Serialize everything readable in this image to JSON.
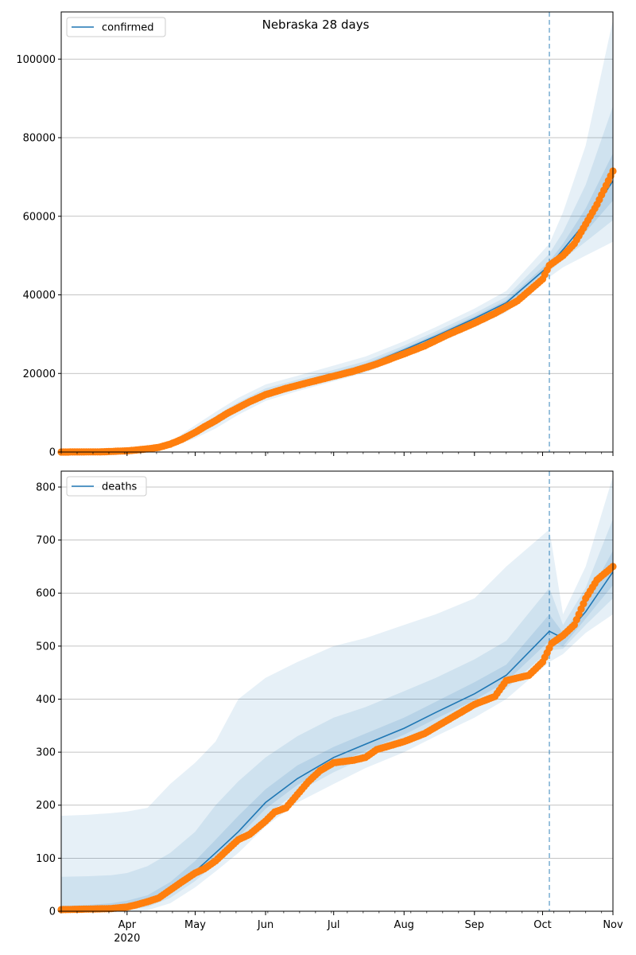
{
  "figure_title": "Nebraska 28 days",
  "month_ticks": [
    "Apr",
    "May",
    "Jun",
    "Jul",
    "Aug",
    "Sep",
    "Oct",
    "Nov"
  ],
  "year_label": "2020",
  "colors": {
    "model": "#1f77b4",
    "observed": "#ff7f0e",
    "band": "#1f77b4",
    "grid": "#b0b0b0",
    "vline": "#1f77b4"
  },
  "chart_data": [
    {
      "type": "line",
      "legend": "confirmed",
      "legend_location": "upper-left",
      "grid": "horizontal",
      "x_range": [
        "2020-03-03",
        "2020-11-01"
      ],
      "forecast_start": "2020-10-04",
      "ylim": [
        0,
        112000
      ],
      "yticks": [
        0,
        20000,
        40000,
        60000,
        80000,
        100000
      ],
      "model_line": {
        "dates": [
          "2020-03-03",
          "2020-03-15",
          "2020-03-25",
          "2020-04-01",
          "2020-04-10",
          "2020-04-20",
          "2020-05-01",
          "2020-05-10",
          "2020-05-20",
          "2020-06-01",
          "2020-06-15",
          "2020-07-01",
          "2020-07-15",
          "2020-08-01",
          "2020-08-15",
          "2020-09-01",
          "2020-09-15",
          "2020-10-04",
          "2020-10-10",
          "2020-10-20",
          "2020-11-01"
        ],
        "values": [
          0,
          0,
          50,
          250,
          700,
          1800,
          5000,
          8000,
          11500,
          15000,
          17300,
          19800,
          22000,
          26000,
          29500,
          34000,
          38000,
          47500,
          51500,
          58500,
          69000
        ]
      },
      "band_outer": {
        "lower": [
          0,
          0,
          20,
          150,
          450,
          1200,
          3500,
          6000,
          9500,
          13000,
          15500,
          18000,
          20200,
          24200,
          27500,
          31800,
          35600,
          44500,
          47000,
          50000,
          53500
        ],
        "upper": [
          300,
          300,
          300,
          400,
          1000,
          2600,
          6800,
          10200,
          13800,
          17200,
          19400,
          22000,
          24300,
          28200,
          31800,
          36500,
          41000,
          53000,
          61000,
          78000,
          110000
        ]
      },
      "band_mid": {
        "lower": [
          0,
          0,
          30,
          190,
          560,
          1450,
          4100,
          6900,
          10400,
          13900,
          16300,
          18800,
          21000,
          25000,
          28400,
          32800,
          36700,
          46000,
          49000,
          53500,
          59000
        ],
        "upper": [
          150,
          150,
          160,
          300,
          850,
          2200,
          6000,
          9200,
          12700,
          16200,
          18400,
          20900,
          23100,
          27100,
          30700,
          35300,
          39500,
          50500,
          56000,
          68000,
          88000
        ]
      },
      "band_inner": {
        "lower": [
          0,
          0,
          40,
          220,
          630,
          1620,
          4550,
          7450,
          10950,
          14450,
          16800,
          19300,
          21500,
          25500,
          28950,
          33400,
          37350,
          46800,
          50200,
          56000,
          64000
        ],
        "upper": [
          80,
          80,
          90,
          280,
          770,
          1980,
          5450,
          8550,
          12050,
          15550,
          17800,
          20300,
          22500,
          26500,
          30050,
          34600,
          38650,
          48500,
          53000,
          62000,
          76000
        ]
      },
      "observed": {
        "dates": [
          "2020-03-03",
          "2020-03-20",
          "2020-03-25",
          "2020-04-01",
          "2020-04-05",
          "2020-04-10",
          "2020-04-15",
          "2020-04-20",
          "2020-04-25",
          "2020-05-01",
          "2020-05-05",
          "2020-05-10",
          "2020-05-15",
          "2020-05-20",
          "2020-05-25",
          "2020-06-01",
          "2020-06-10",
          "2020-06-20",
          "2020-07-01",
          "2020-07-10",
          "2020-07-20",
          "2020-08-01",
          "2020-08-10",
          "2020-08-20",
          "2020-09-01",
          "2020-09-10",
          "2020-09-20",
          "2020-10-01",
          "2020-10-04",
          "2020-10-10",
          "2020-10-15",
          "2020-10-20",
          "2020-10-25",
          "2020-11-01"
        ],
        "values": [
          0,
          50,
          150,
          300,
          500,
          800,
          1200,
          2000,
          3200,
          5000,
          6400,
          8000,
          9800,
          11300,
          12800,
          14600,
          16200,
          17700,
          19300,
          20600,
          22400,
          25000,
          27000,
          29800,
          32800,
          35300,
          38500,
          44000,
          47500,
          50000,
          53000,
          58000,
          63000,
          71500
        ]
      }
    },
    {
      "type": "line",
      "legend": "deaths",
      "legend_location": "upper-left",
      "grid": "horizontal",
      "x_range": [
        "2020-03-03",
        "2020-11-01"
      ],
      "forecast_start": "2020-10-04",
      "ylim": [
        0,
        830
      ],
      "yticks": [
        0,
        100,
        200,
        300,
        400,
        500,
        600,
        700,
        800
      ],
      "model_line": {
        "dates": [
          "2020-03-03",
          "2020-03-15",
          "2020-03-25",
          "2020-04-01",
          "2020-04-10",
          "2020-04-20",
          "2020-05-01",
          "2020-05-10",
          "2020-05-20",
          "2020-06-01",
          "2020-06-15",
          "2020-07-01",
          "2020-07-15",
          "2020-08-01",
          "2020-08-15",
          "2020-09-01",
          "2020-09-15",
          "2020-10-04",
          "2020-10-10",
          "2020-10-20",
          "2020-11-01"
        ],
        "values": [
          3,
          5,
          7,
          10,
          17,
          40,
          75,
          110,
          150,
          205,
          250,
          290,
          315,
          345,
          375,
          410,
          445,
          528,
          515,
          565,
          640
        ]
      },
      "band_outer": {
        "lower": [
          0,
          0,
          0,
          0,
          2,
          15,
          45,
          75,
          110,
          160,
          205,
          240,
          270,
          300,
          330,
          365,
          400,
          470,
          485,
          525,
          560
        ]
      },
      "band_outer_upper": [
        180,
        182,
        185,
        188,
        195,
        240,
        280,
        320,
        400,
        440,
        470,
        500,
        515,
        540,
        560,
        590,
        650,
        720,
        560,
        650,
        820
      ],
      "band_mid": {
        "lower": [
          0,
          0,
          1,
          3,
          8,
          25,
          57,
          90,
          128,
          180,
          225,
          262,
          290,
          320,
          350,
          385,
          420,
          492,
          495,
          540,
          590
        ],
        "upper": [
          65,
          66,
          68,
          72,
          85,
          110,
          150,
          200,
          245,
          290,
          330,
          365,
          385,
          415,
          440,
          475,
          510,
          610,
          540,
          610,
          740
        ]
      },
      "band_inner": {
        "lower": [
          1,
          1,
          3,
          5,
          12,
          32,
          65,
          100,
          140,
          193,
          238,
          277,
          302,
          333,
          363,
          398,
          433,
          510,
          500,
          552,
          615
        ],
        "upper": [
          10,
          12,
          15,
          20,
          30,
          55,
          95,
          135,
          180,
          230,
          275,
          310,
          335,
          365,
          395,
          432,
          465,
          560,
          525,
          585,
          680
        ]
      },
      "observed": {
        "dates": [
          "2020-03-03",
          "2020-03-25",
          "2020-04-01",
          "2020-04-05",
          "2020-04-10",
          "2020-04-15",
          "2020-04-20",
          "2020-04-25",
          "2020-05-01",
          "2020-05-05",
          "2020-05-10",
          "2020-05-15",
          "2020-05-20",
          "2020-05-25",
          "2020-06-01",
          "2020-06-05",
          "2020-06-10",
          "2020-06-15",
          "2020-06-20",
          "2020-06-25",
          "2020-07-01",
          "2020-07-10",
          "2020-07-15",
          "2020-07-20",
          "2020-08-01",
          "2020-08-10",
          "2020-08-20",
          "2020-09-01",
          "2020-09-10",
          "2020-09-15",
          "2020-09-25",
          "2020-10-01",
          "2020-10-05",
          "2020-10-10",
          "2020-10-15",
          "2020-10-20",
          "2020-10-25",
          "2020-11-01"
        ],
        "values": [
          3,
          5,
          8,
          12,
          18,
          25,
          40,
          55,
          72,
          80,
          95,
          115,
          135,
          145,
          170,
          187,
          195,
          220,
          245,
          265,
          280,
          285,
          290,
          305,
          320,
          335,
          360,
          390,
          405,
          435,
          445,
          470,
          505,
          520,
          540,
          590,
          625,
          650
        ]
      }
    }
  ]
}
